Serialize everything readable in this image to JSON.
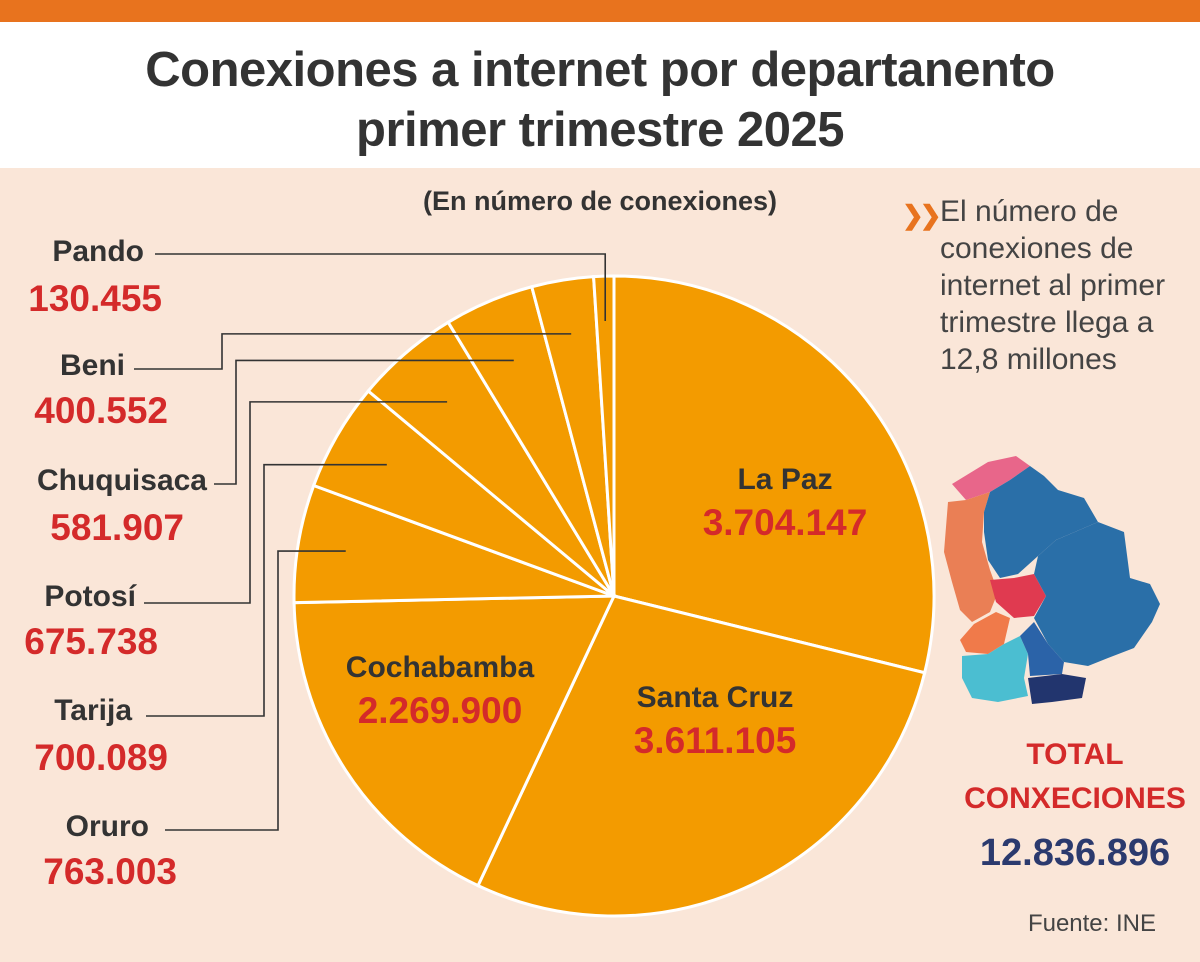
{
  "title": [
    "Conexiones a internet por departanento",
    "primer trimestre 2025"
  ],
  "subtitle": "(En número de conexiones)",
  "note": "El número de conexiones de internet al primer trimestre llega a 12,8 millones",
  "note_icon": "double-chevron-icon",
  "total_title": [
    "TOTAL",
    "CONXECIONES"
  ],
  "total_value": "12.836.896",
  "source": "Fuente: INE",
  "colors": {
    "accent": "#e8731e",
    "slice": "#f39b00",
    "value_red": "#d42a2a",
    "total_blue": "#2b3a6e",
    "background": "#fae6d8"
  },
  "chart_data": {
    "type": "pie",
    "categories": [
      "La Paz",
      "Santa Cruz",
      "Cochabamba",
      "Oruro",
      "Tarija",
      "Potosí",
      "Chuquisaca",
      "Beni",
      "Pando"
    ],
    "values": [
      3704147,
      3611105,
      2269900,
      763003,
      700089,
      675738,
      581907,
      400552,
      130455
    ],
    "labels": [
      "3.704.147",
      "3.611.105",
      "2.269.900",
      "763.003",
      "700.089",
      "675.738",
      "581.907",
      "400.552",
      "130.455"
    ],
    "title": "Conexiones a internet por departanento primer trimestre 2025"
  }
}
